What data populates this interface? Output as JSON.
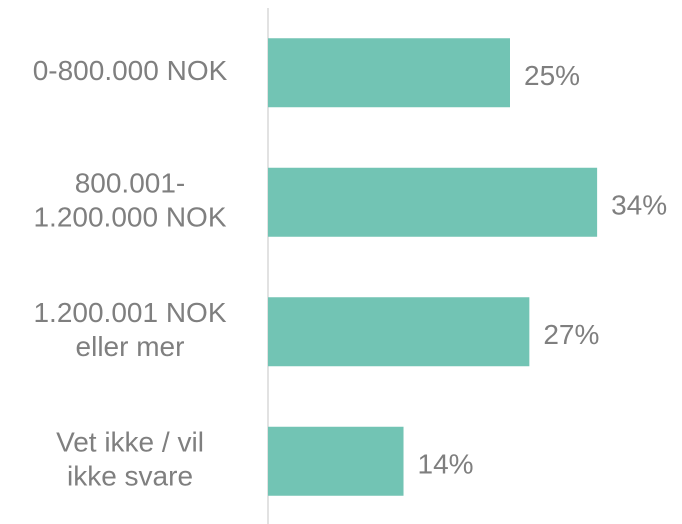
{
  "chart_data": {
    "type": "bar",
    "orientation": "horizontal",
    "categories": [
      [
        "0-800.000 NOK"
      ],
      [
        "800.001-",
        "1.200.000 NOK"
      ],
      [
        "1.200.001 NOK",
        "eller mer"
      ],
      [
        "Vet ikke / vil",
        "ikke svare"
      ]
    ],
    "values": [
      25,
      34,
      27,
      14
    ],
    "value_labels": [
      "25%",
      "34%",
      "27%",
      "14%"
    ],
    "color": "#72c4b4"
  }
}
